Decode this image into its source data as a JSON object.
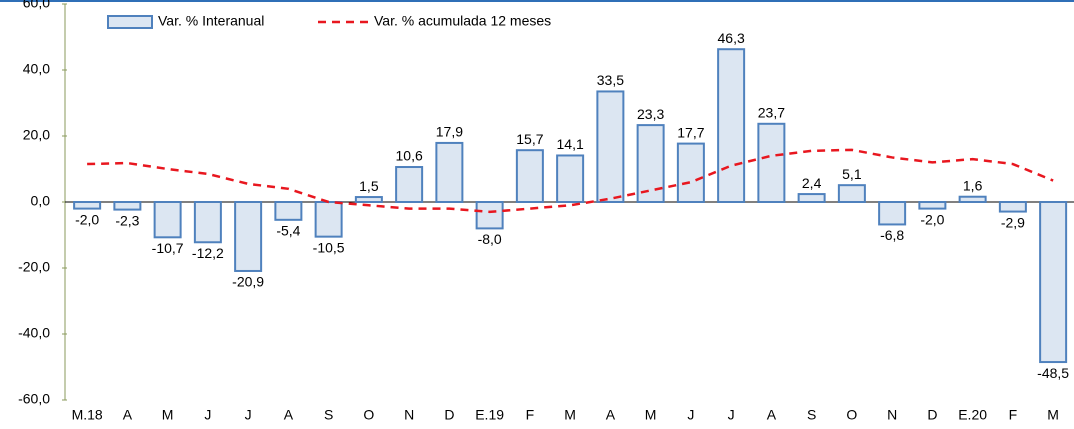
{
  "chart_data": {
    "type": "bar-line",
    "categories": [
      "M.18",
      "A",
      "M",
      "J",
      "J",
      "A",
      "S",
      "O",
      "N",
      "D",
      "E.19",
      "F",
      "M",
      "A",
      "M",
      "J",
      "J",
      "A",
      "S",
      "O",
      "N",
      "D",
      "E.20",
      "F",
      "M"
    ],
    "series": [
      {
        "name": "Var. % Interanual",
        "type": "bar",
        "color": "#dce6f2",
        "edge_color": "#4f81bd",
        "values": [
          -2.0,
          -2.3,
          -10.7,
          -12.2,
          -20.9,
          -5.4,
          -10.5,
          1.5,
          10.6,
          17.9,
          -8.0,
          15.7,
          14.1,
          33.5,
          23.3,
          17.7,
          46.3,
          23.7,
          2.4,
          5.1,
          -6.8,
          -2.0,
          1.6,
          -2.9,
          -48.5
        ],
        "value_labels": [
          "-2,0",
          "-2,3",
          "-10,7",
          "-12,2",
          "-20,9",
          "-5,4",
          "-10,5",
          "1,5",
          "10,6",
          "17,9",
          "-8,0",
          "15,7",
          "14,1",
          "33,5",
          "23,3",
          "17,7",
          "46,3",
          "23,7",
          "2,4",
          "5,1",
          "-6,8",
          "-2,0",
          "1,6",
          "-2,9",
          "-48,5"
        ]
      },
      {
        "name": "Var. % acumulada 12 meses",
        "type": "line",
        "color": "#e8171f",
        "dashed": true,
        "values": [
          11.5,
          11.8,
          10,
          8.5,
          5.5,
          4,
          0,
          -1,
          -2,
          -2,
          -3,
          -2,
          -1,
          1,
          3.5,
          6,
          11,
          14,
          15.5,
          15.8,
          13.5,
          12,
          13,
          11.5,
          6.5
        ]
      }
    ],
    "ylim": [
      -60,
      60
    ],
    "yticks": [
      {
        "value": -60,
        "label": "-60,0"
      },
      {
        "value": -40,
        "label": "-40,0"
      },
      {
        "value": -20,
        "label": "-20,0"
      },
      {
        "value": 0,
        "label": "0,0"
      },
      {
        "value": 20,
        "label": "20,0"
      },
      {
        "value": 40,
        "label": "40,0"
      },
      {
        "value": 60,
        "label": "60,0"
      }
    ]
  }
}
